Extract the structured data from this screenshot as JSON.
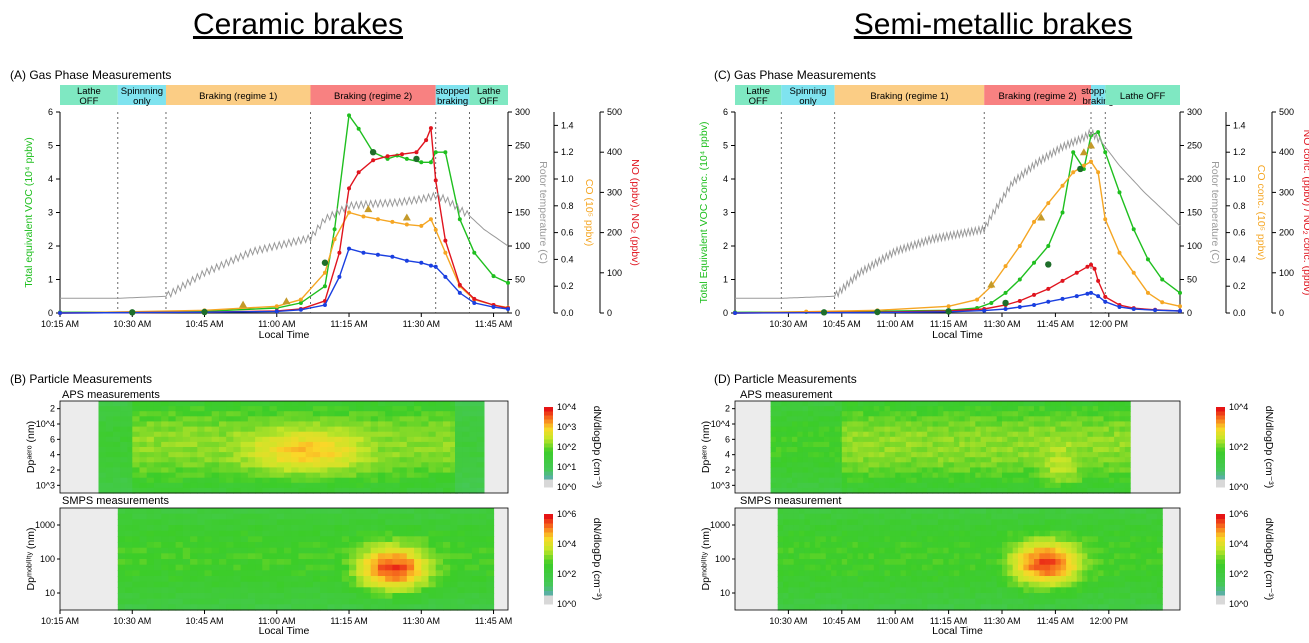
{
  "titles": {
    "left": "Ceramic brakes",
    "right": "Semi-metallic brakes",
    "A": "(A) Gas Phase Measurements",
    "B": "(B) Particle Measurements",
    "C": "(C) Gas Phase Measurements",
    "D": "(D) Particle Measurements",
    "B_aps": "APS measurements",
    "B_smps": "SMPS measurements",
    "D_aps": "APS measurement",
    "D_smps": "SMPS measurement"
  },
  "labels": {
    "local_time": "Local Time",
    "cbar": "dN/dlogDp (cm⁻³)",
    "dp_aero": "Dpᵃᵉʳᵒ (nm)",
    "dp_mob": "Dpᵐᵒᵇⁱˡⁱᵗʸ (nm)",
    "rotor": "Rotor temperature (C)",
    "A_voc": "Total equivalent VOC (10⁴ ppbv)",
    "A_co": "CO (10⁵ ppbv)",
    "A_nox": "NO (ppbv), NO₂ (ppbv)",
    "C_voc": "Total Equivalent VOC Conc. (10⁴ ppbv)",
    "C_co": "CO conc. (10⁵ ppbv)",
    "C_nox": "NO conc. (ppbv) / NO₂ conc. (ppbv)"
  },
  "regimes_A": [
    {
      "label": "Lathe OFF",
      "color": "#7fe8c2",
      "t0": 0,
      "t1": 12
    },
    {
      "label": "Spinnning only",
      "color": "#7fe3ef",
      "t0": 12,
      "t1": 22
    },
    {
      "label": "Braking (regime 1)",
      "color": "#fbcd85",
      "t0": 22,
      "t1": 52
    },
    {
      "label": "Braking (regime 2)",
      "color": "#f88181",
      "t0": 52,
      "t1": 78
    },
    {
      "label": "stopped braking",
      "color": "#7fe3ef",
      "t0": 78,
      "t1": 85
    },
    {
      "label": "Lathe OFF",
      "color": "#7fe8c2",
      "t0": 85,
      "t1": 93
    }
  ],
  "regimes_C": [
    {
      "label": "Lathe OFF",
      "color": "#7fe8c2",
      "t0": 0,
      "t1": 13
    },
    {
      "label": "Spinning only",
      "color": "#7fe3ef",
      "t0": 13,
      "t1": 28
    },
    {
      "label": "Braking (regime 1)",
      "color": "#fbcd85",
      "t0": 28,
      "t1": 70
    },
    {
      "label": "Braking (regime 2)",
      "color": "#f88181",
      "t0": 70,
      "t1": 100
    },
    {
      "label": "stopped braking",
      "color": "#7fe3ef",
      "t0": 100,
      "t1": 104
    },
    {
      "label": "Lathe OFF",
      "color": "#7fe8c2",
      "t0": 104,
      "t1": 125
    }
  ],
  "colors": {
    "voc": "#1fbf1f",
    "co": "#f5a623",
    "no": "#e0141e",
    "no2": "#1a3fe0",
    "rotor": "#9a9a9a",
    "tri": "#c49a2a",
    "dark": "#1e6e2a",
    "grid": "#555555",
    "heat_bg": "#ececec"
  },
  "chart_data": [
    {
      "type": "line",
      "panel": "A",
      "title": "Gas Phase Measurements",
      "xlabel": "Local Time",
      "x_ticks": [
        "10:15 AM",
        "10:30 AM",
        "10:45 AM",
        "11:00 AM",
        "11:15 AM",
        "11:30 AM",
        "11:45 AM"
      ],
      "x_tick_minutes": [
        0,
        15,
        30,
        45,
        60,
        75,
        90
      ],
      "xlim": [
        0,
        93
      ],
      "left_axis": {
        "label": "Total equivalent VOC (10^4 ppbv)",
        "ylim": [
          0,
          6
        ],
        "ticks": [
          0,
          1,
          2,
          3,
          4,
          5,
          6
        ]
      },
      "right_axes": [
        {
          "label": "Rotor temperature (C)",
          "ylim": [
            0,
            300
          ],
          "ticks": [
            0,
            50,
            100,
            150,
            200,
            250,
            300
          ]
        },
        {
          "label": "CO (10^5 ppbv)",
          "ylim": [
            0,
            1.5
          ],
          "ticks": [
            0.0,
            0.2,
            0.4,
            0.6,
            0.8,
            1.0,
            1.2,
            1.4
          ]
        },
        {
          "label": "NO (ppbv), NO2 (ppbv)",
          "ylim": [
            0,
            500
          ],
          "ticks": [
            0,
            100,
            200,
            300,
            400,
            500
          ]
        }
      ],
      "event_lines_min": [
        12,
        22,
        52,
        78,
        85
      ],
      "series": [
        {
          "name": "VOC",
          "axis": "voc",
          "x": [
            0,
            15,
            30,
            45,
            50,
            55,
            57,
            60,
            62,
            65,
            68,
            70,
            72,
            75,
            77,
            78,
            80,
            83,
            86,
            90,
            93
          ],
          "y": [
            0.02,
            0.03,
            0.05,
            0.15,
            0.3,
            0.8,
            2.5,
            5.9,
            5.5,
            4.8,
            4.6,
            4.7,
            4.6,
            4.5,
            4.5,
            4.8,
            4.8,
            2.8,
            1.8,
            1.1,
            0.9
          ]
        },
        {
          "name": "CO",
          "axis": "co",
          "x": [
            0,
            15,
            30,
            45,
            50,
            55,
            57,
            60,
            63,
            66,
            69,
            72,
            75,
            77,
            78,
            80,
            83,
            86,
            90,
            93
          ],
          "y": [
            0.0,
            0.01,
            0.02,
            0.05,
            0.1,
            0.3,
            0.55,
            0.75,
            0.72,
            0.7,
            0.68,
            0.66,
            0.65,
            0.7,
            0.62,
            0.45,
            0.2,
            0.1,
            0.06,
            0.04
          ]
        },
        {
          "name": "NO",
          "axis": "nox",
          "x": [
            0,
            15,
            30,
            45,
            50,
            55,
            58,
            60,
            62,
            65,
            68,
            71,
            74,
            76,
            77,
            78,
            80,
            83,
            86,
            90,
            93
          ],
          "y": [
            0,
            1,
            2,
            5,
            10,
            30,
            150,
            310,
            350,
            380,
            390,
            395,
            400,
            430,
            460,
            330,
            180,
            70,
            35,
            20,
            12
          ]
        },
        {
          "name": "NO2",
          "axis": "nox",
          "x": [
            0,
            15,
            30,
            45,
            50,
            55,
            58,
            60,
            63,
            66,
            69,
            72,
            75,
            77,
            78,
            80,
            83,
            86,
            90,
            93
          ],
          "y": [
            0,
            1,
            2,
            4,
            8,
            20,
            90,
            160,
            150,
            145,
            140,
            130,
            125,
            118,
            115,
            90,
            50,
            25,
            15,
            10
          ]
        },
        {
          "name": "Rotor temperature",
          "axis": "rotor",
          "x": [
            0,
            12,
            22,
            30,
            40,
            52,
            55,
            60,
            65,
            70,
            75,
            78,
            80,
            85,
            88,
            93
          ],
          "y": [
            22,
            22,
            25,
            60,
            92,
            112,
            140,
            160,
            163,
            165,
            170,
            175,
            170,
            145,
            125,
            100
          ]
        }
      ],
      "markers": {
        "triangles": {
          "axis": "voc",
          "x": [
            38,
            47,
            64,
            72
          ],
          "y": [
            0.25,
            0.35,
            3.1,
            2.85
          ]
        },
        "dots": {
          "axis": "voc",
          "x": [
            15,
            30,
            55,
            65,
            74
          ],
          "y": [
            0.02,
            0.03,
            1.5,
            4.8,
            4.6
          ]
        }
      }
    },
    {
      "type": "line",
      "panel": "C",
      "title": "Gas Phase Measurements",
      "xlabel": "Local Time",
      "x_ticks": [
        "10:30 AM",
        "10:45 AM",
        "11:00 AM",
        "11:15 AM",
        "11:30 AM",
        "11:45 AM",
        "12:00 PM"
      ],
      "x_tick_minutes": [
        15,
        30,
        45,
        60,
        75,
        90,
        105
      ],
      "xlim": [
        0,
        125
      ],
      "left_axis": {
        "label": "Total Equivalent VOC Conc. (10^4 ppbv)",
        "ylim": [
          0,
          6
        ],
        "ticks": [
          0,
          1,
          2,
          3,
          4,
          5,
          6
        ]
      },
      "right_axes": [
        {
          "label": "Rotor temperature (C)",
          "ylim": [
            0,
            300
          ],
          "ticks": [
            0,
            50,
            100,
            150,
            200,
            250,
            300
          ]
        },
        {
          "label": "CO conc. (10^5 ppbv)",
          "ylim": [
            0,
            1.5
          ],
          "ticks": [
            0.0,
            0.2,
            0.4,
            0.6,
            0.8,
            1.0,
            1.2,
            1.4
          ]
        },
        {
          "label": "NO conc. (ppbv) / NO2 conc. (ppbv)",
          "ylim": [
            0,
            500
          ],
          "ticks": [
            0,
            100,
            200,
            300,
            400,
            500
          ]
        }
      ],
      "event_lines_min": [
        13,
        28,
        70,
        100,
        104
      ],
      "series": [
        {
          "name": "VOC",
          "axis": "voc",
          "x": [
            0,
            20,
            40,
            60,
            68,
            72,
            76,
            80,
            84,
            88,
            92,
            95,
            98,
            100,
            102,
            104,
            108,
            112,
            116,
            120,
            125
          ],
          "y": [
            0.02,
            0.03,
            0.05,
            0.08,
            0.15,
            0.3,
            0.6,
            1.0,
            1.5,
            2.0,
            3.0,
            4.8,
            4.3,
            5.3,
            5.4,
            4.8,
            3.6,
            2.5,
            1.6,
            1.0,
            0.6
          ]
        },
        {
          "name": "CO",
          "axis": "co",
          "x": [
            0,
            20,
            40,
            60,
            68,
            72,
            76,
            80,
            84,
            88,
            92,
            95,
            98,
            100,
            102,
            104,
            108,
            112,
            116,
            120,
            125
          ],
          "y": [
            0.0,
            0.01,
            0.02,
            0.05,
            0.1,
            0.2,
            0.35,
            0.5,
            0.68,
            0.82,
            0.95,
            1.05,
            1.1,
            1.13,
            1.05,
            0.7,
            0.45,
            0.3,
            0.15,
            0.08,
            0.05
          ]
        },
        {
          "name": "NO",
          "axis": "nox",
          "x": [
            0,
            40,
            60,
            70,
            76,
            80,
            84,
            88,
            92,
            96,
            99,
            100,
            101,
            102,
            104,
            108,
            112,
            118,
            125
          ],
          "y": [
            0,
            2,
            5,
            10,
            20,
            30,
            45,
            60,
            80,
            100,
            115,
            120,
            110,
            80,
            40,
            20,
            12,
            8,
            5
          ]
        },
        {
          "name": "NO2",
          "axis": "nox",
          "x": [
            0,
            40,
            60,
            70,
            76,
            80,
            84,
            88,
            92,
            96,
            99,
            100,
            102,
            104,
            108,
            112,
            118,
            125
          ],
          "y": [
            0,
            1,
            3,
            6,
            10,
            15,
            20,
            28,
            35,
            42,
            48,
            50,
            42,
            28,
            15,
            10,
            7,
            5
          ]
        },
        {
          "name": "Rotor temperature",
          "axis": "rotor",
          "x": [
            0,
            13,
            28,
            35,
            45,
            55,
            70,
            72,
            78,
            85,
            92,
            98,
            100,
            103,
            108,
            115,
            125
          ],
          "y": [
            22,
            22,
            25,
            60,
            92,
            110,
            125,
            145,
            195,
            225,
            248,
            262,
            270,
            255,
            220,
            180,
            130
          ]
        }
      ],
      "markers": {
        "triangles": {
          "axis": "voc",
          "x": [
            72,
            86,
            98,
            100
          ],
          "y": [
            0.85,
            2.85,
            4.8,
            5.0
          ]
        },
        "dots": {
          "axis": "voc",
          "x": [
            25,
            40,
            60,
            76,
            88,
            97
          ],
          "y": [
            0.02,
            0.03,
            0.05,
            0.3,
            1.45,
            4.3
          ]
        }
      }
    },
    {
      "type": "heatmap",
      "panel": "B",
      "subpanel": "APS",
      "title": "APS measurements",
      "ylabel": "Dp aero (nm)",
      "y_ticks": [
        "10^3",
        "2",
        "4",
        "6",
        "10^4",
        "2"
      ],
      "colorbar": {
        "label": "dN/dlogDp (cm-3)",
        "ticks": [
          "10^0",
          "10^1",
          "10^2",
          "10^3",
          "10^4"
        ]
      },
      "segments": [
        {
          "t0": 8,
          "t1": 15,
          "level": 0.4
        },
        {
          "t0": 15,
          "t1": 82,
          "level": 0.55
        },
        {
          "t0": 82,
          "t1": 88,
          "level": 0.35
        }
      ],
      "hot_spot": {
        "t0": 30,
        "t1": 76,
        "level": 0.78
      }
    },
    {
      "type": "heatmap",
      "panel": "B",
      "subpanel": "SMPS",
      "title": "SMPS measurements",
      "ylabel": "Dp mobility (nm)",
      "y_ticks": [
        "10",
        "100",
        "1000"
      ],
      "colorbar": {
        "label": "dN/dlogDp (cm-3)",
        "ticks": [
          "10^0",
          "10^2",
          "10^4",
          "10^6"
        ]
      },
      "segments": [
        {
          "t0": 12,
          "t1": 89,
          "level": 0.45
        }
      ],
      "hot_spot": {
        "t0": 57,
        "t1": 82,
        "level": 0.95
      }
    },
    {
      "type": "heatmap",
      "panel": "D",
      "subpanel": "APS",
      "title": "APS measurement",
      "ylabel": "Dp aero (nm)",
      "y_ticks": [
        "10^3",
        "2",
        "4",
        "6",
        "10^4",
        "2"
      ],
      "colorbar": {
        "label": "dN/dlogDp (cm-3)",
        "ticks": [
          "10^0",
          "10^2",
          "10^4"
        ]
      },
      "segments": [
        {
          "t0": 10,
          "t1": 30,
          "level": 0.45
        },
        {
          "t0": 30,
          "t1": 110,
          "level": 0.55
        }
      ],
      "hot_spot": {
        "t0": 80,
        "t1": 105,
        "level": 0.62
      }
    },
    {
      "type": "heatmap",
      "panel": "D",
      "subpanel": "SMPS",
      "title": "SMPS measurement",
      "ylabel": "Dp mobility (nm)",
      "y_ticks": [
        "10",
        "100",
        "1000"
      ],
      "colorbar": {
        "label": "dN/dlogDp (cm-3)",
        "ticks": [
          "10^0",
          "10^2",
          "10^4",
          "10^6"
        ]
      },
      "segments": [
        {
          "t0": 12,
          "t1": 120,
          "level": 0.45
        }
      ],
      "hot_spot": {
        "t0": 72,
        "t1": 104,
        "level": 0.95
      }
    }
  ]
}
